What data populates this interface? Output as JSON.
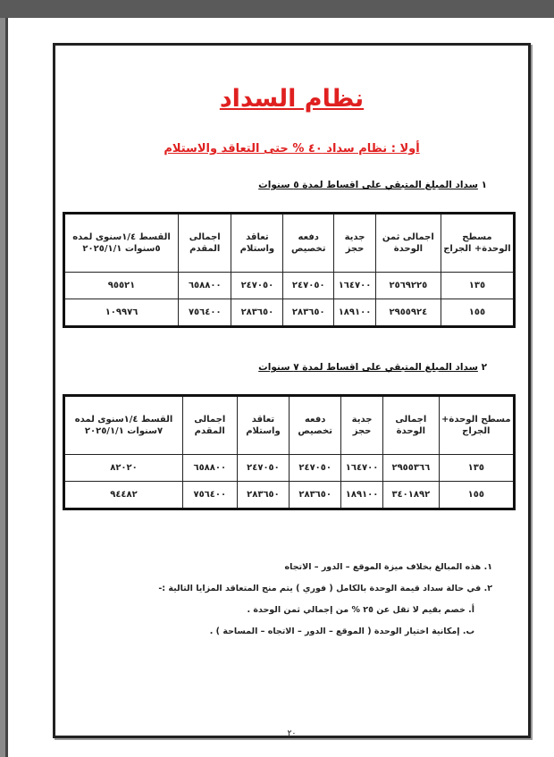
{
  "title": "نظام السداد",
  "subtitle": "أولا : نظام سداد ٤٠ % حتى التعاقد والاستلام",
  "sections": [
    {
      "number": "١",
      "heading": "سداد المبلغ المتبقي على اقساط لمدة ٥ سنوات",
      "headers": [
        "مسطح الوحدة+ الجراج",
        "اجمالى ثمن الوحدة",
        "جدية حجز",
        "دفعه تخصيص",
        "تعاقد واستلام",
        "اجمالى المقدم",
        "القسط ١/٤سنوى لمده ٥سنوات ٢٠٢٥/١/١"
      ],
      "rows": [
        [
          "١٣٥",
          "٢٥٦٩٢٢٥",
          "١٦٤٧٠٠",
          "٢٤٧٠٥٠",
          "٢٤٧٠٥٠",
          "٦٥٨٨٠٠",
          "٩٥٥٢١"
        ],
        [
          "١٥٥",
          "٢٩٥٥٩٢٤",
          "١٨٩١٠٠",
          "٢٨٣٦٥٠",
          "٢٨٣٦٥٠",
          "٧٥٦٤٠٠",
          "١٠٩٩٧٦"
        ]
      ]
    },
    {
      "number": "٢",
      "heading": "سداد المبلغ المتبقي على اقساط لمدة ٧ سنوات",
      "headers": [
        "مسطح الوحدة+ الجراج",
        "اجمالى الوحدة",
        "جدية حجز",
        "دفعه تخصيص",
        "تعاقد واستلام",
        "اجمالى المقدم",
        "القسط ١/٤سنوى لمده ٧سنوات ٢٠٢٥/١/١"
      ],
      "rows": [
        [
          "١٣٥",
          "٢٩٥٥٣٦٦",
          "١٦٤٧٠٠",
          "٢٤٧٠٥٠",
          "٢٤٧٠٥٠",
          "٦٥٨٨٠٠",
          "٨٢٠٢٠"
        ],
        [
          "١٥٥",
          "٣٤٠١٨٩٢",
          "١٨٩١٠٠",
          "٢٨٣٦٥٠",
          "٢٨٣٦٥٠",
          "٧٥٦٤٠٠",
          "٩٤٤٨٢"
        ]
      ]
    }
  ],
  "notes": [
    "١. هذه المبالغ بخلاف ميزة الموقع – الدور – الاتجاه",
    "٢. في حالة سداد قيمة الوحدة بالكامل ( فوري ) يتم منح المتعاقد المزايا التالية :-",
    "أ. خصم بقيم لا تقل عن ٢٥ % من إجمالي ثمن الوحدة .",
    "ب. إمكانية اختيار الوحدة ( الموقع – الدور – الاتجاه – المساحة ) ."
  ],
  "page_number": "٢٠"
}
